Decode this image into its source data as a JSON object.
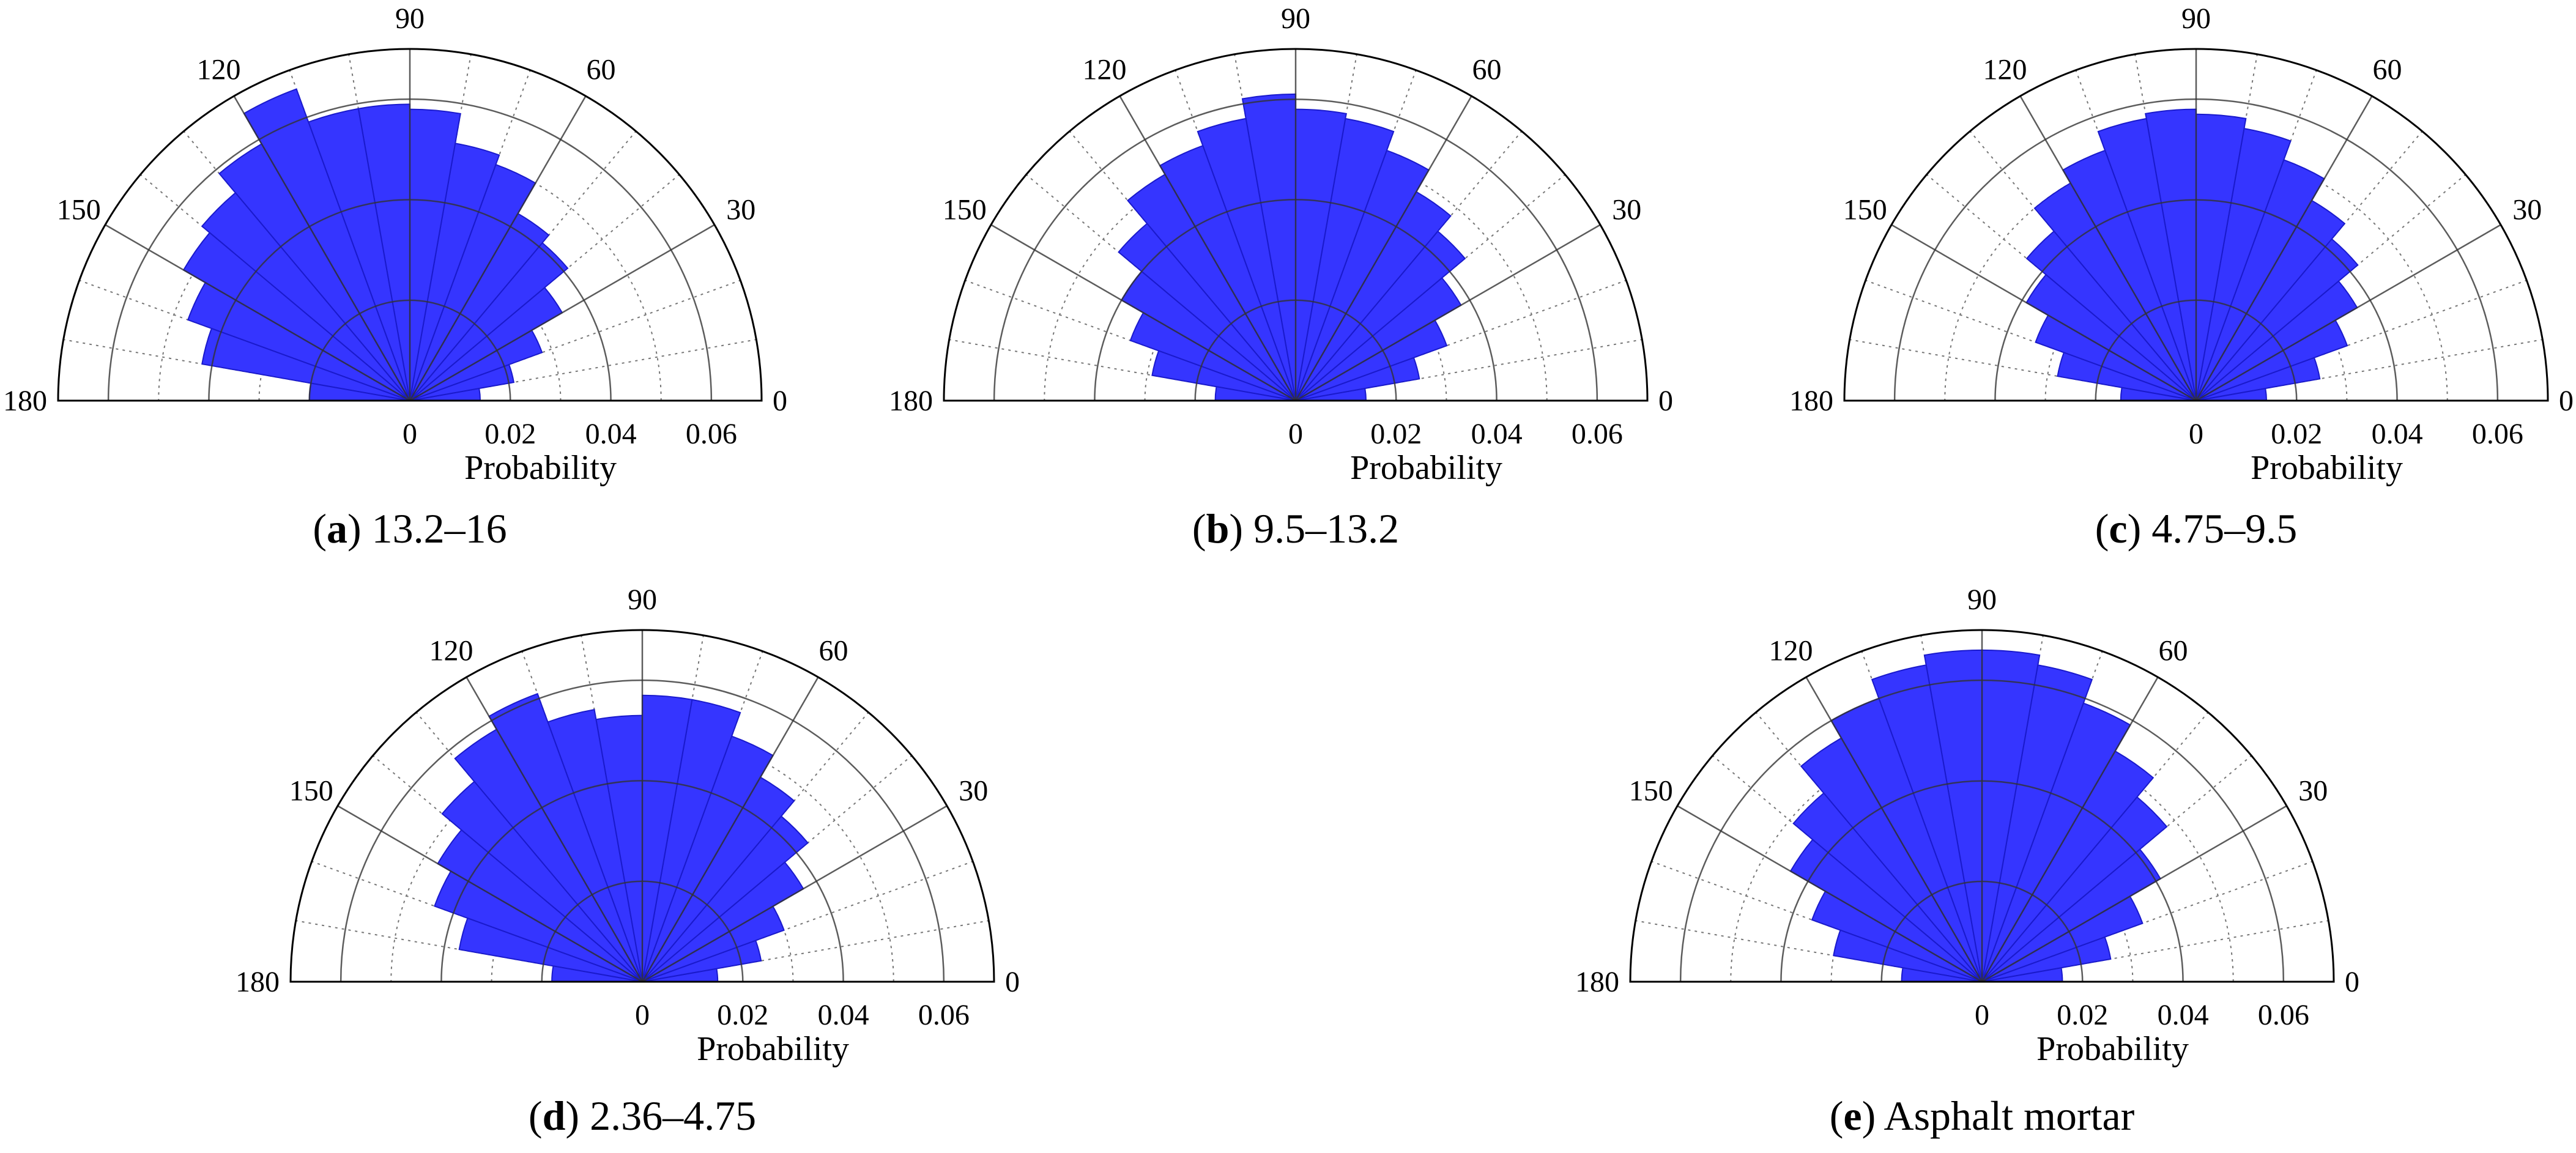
{
  "chart_data": [
    {
      "type": "polar-histogram",
      "caption_letter": "a",
      "caption_text": "13.2–16",
      "angle_ticks": [
        "0",
        "30",
        "60",
        "90",
        "120",
        "150",
        "180"
      ],
      "radial_ticks": [
        "0",
        "0.02",
        "0.04",
        "0.06"
      ],
      "radial_label": "Probability",
      "rlim": [
        0,
        0.07
      ],
      "bin_width_deg": 10,
      "bin_centers_deg": [
        5,
        15,
        25,
        35,
        45,
        55,
        65,
        75,
        85,
        95,
        105,
        115,
        125,
        135,
        145,
        155,
        165,
        175
      ],
      "values": [
        0.014,
        0.021,
        0.028,
        0.035,
        0.041,
        0.043,
        0.05,
        0.052,
        0.058,
        0.059,
        0.059,
        0.066,
        0.059,
        0.054,
        0.052,
        0.047,
        0.042,
        0.02
      ],
      "color": "#3535ff"
    },
    {
      "type": "polar-histogram",
      "caption_letter": "b",
      "caption_text": "9.5–13.2",
      "angle_ticks": [
        "0",
        "30",
        "60",
        "90",
        "120",
        "150",
        "180"
      ],
      "radial_ticks": [
        "0",
        "0.02",
        "0.04",
        "0.06"
      ],
      "radial_label": "Probability",
      "rlim": [
        0,
        0.07
      ],
      "bin_width_deg": 10,
      "bin_centers_deg": [
        5,
        15,
        25,
        35,
        45,
        55,
        65,
        75,
        85,
        95,
        105,
        115,
        125,
        135,
        145,
        155,
        165,
        175
      ],
      "values": [
        0.014,
        0.025,
        0.032,
        0.038,
        0.044,
        0.048,
        0.053,
        0.057,
        0.058,
        0.061,
        0.057,
        0.054,
        0.052,
        0.046,
        0.04,
        0.035,
        0.029,
        0.016
      ],
      "color": "#3535ff"
    },
    {
      "type": "polar-histogram",
      "caption_letter": "c",
      "caption_text": "4.75–9.5",
      "angle_ticks": [
        "0",
        "30",
        "60",
        "90",
        "120",
        "150",
        "180"
      ],
      "radial_ticks": [
        "0",
        "0.02",
        "0.04",
        "0.06"
      ],
      "radial_label": "Probability",
      "rlim": [
        0,
        0.07
      ],
      "bin_width_deg": 10,
      "bin_centers_deg": [
        5,
        15,
        25,
        35,
        45,
        55,
        65,
        75,
        85,
        95,
        105,
        115,
        125,
        135,
        145,
        155,
        165,
        175
      ],
      "values": [
        0.014,
        0.025,
        0.032,
        0.037,
        0.042,
        0.046,
        0.051,
        0.055,
        0.057,
        0.058,
        0.057,
        0.053,
        0.05,
        0.044,
        0.039,
        0.034,
        0.028,
        0.015
      ],
      "color": "#3535ff"
    },
    {
      "type": "polar-histogram",
      "caption_letter": "d",
      "caption_text": "2.36–4.75",
      "angle_ticks": [
        "0",
        "30",
        "60",
        "90",
        "120",
        "150",
        "180"
      ],
      "radial_ticks": [
        "0",
        "0.02",
        "0.04",
        "0.06"
      ],
      "radial_label": "Probability",
      "rlim": [
        0,
        0.07
      ],
      "bin_width_deg": 10,
      "bin_centers_deg": [
        5,
        15,
        25,
        35,
        45,
        55,
        65,
        75,
        85,
        95,
        105,
        115,
        125,
        135,
        145,
        155,
        165,
        175
      ],
      "values": [
        0.015,
        0.024,
        0.03,
        0.037,
        0.043,
        0.047,
        0.052,
        0.057,
        0.057,
        0.053,
        0.055,
        0.061,
        0.058,
        0.052,
        0.047,
        0.044,
        0.037,
        0.018
      ],
      "color": "#3535ff"
    },
    {
      "type": "polar-histogram",
      "caption_letter": "e",
      "caption_text": "Asphalt mortar",
      "angle_ticks": [
        "0",
        "30",
        "60",
        "90",
        "120",
        "150",
        "180"
      ],
      "radial_ticks": [
        "0",
        "0.02",
        "0.04",
        "0.06"
      ],
      "radial_label": "Probability",
      "rlim": [
        0,
        0.07
      ],
      "bin_width_deg": 10,
      "bin_centers_deg": [
        5,
        15,
        25,
        35,
        45,
        55,
        65,
        75,
        85,
        95,
        105,
        115,
        125,
        135,
        145,
        155,
        165,
        175
      ],
      "values": [
        0.016,
        0.026,
        0.034,
        0.041,
        0.048,
        0.053,
        0.059,
        0.064,
        0.066,
        0.066,
        0.064,
        0.06,
        0.056,
        0.049,
        0.044,
        0.036,
        0.03,
        0.016
      ],
      "color": "#3535ff"
    }
  ]
}
